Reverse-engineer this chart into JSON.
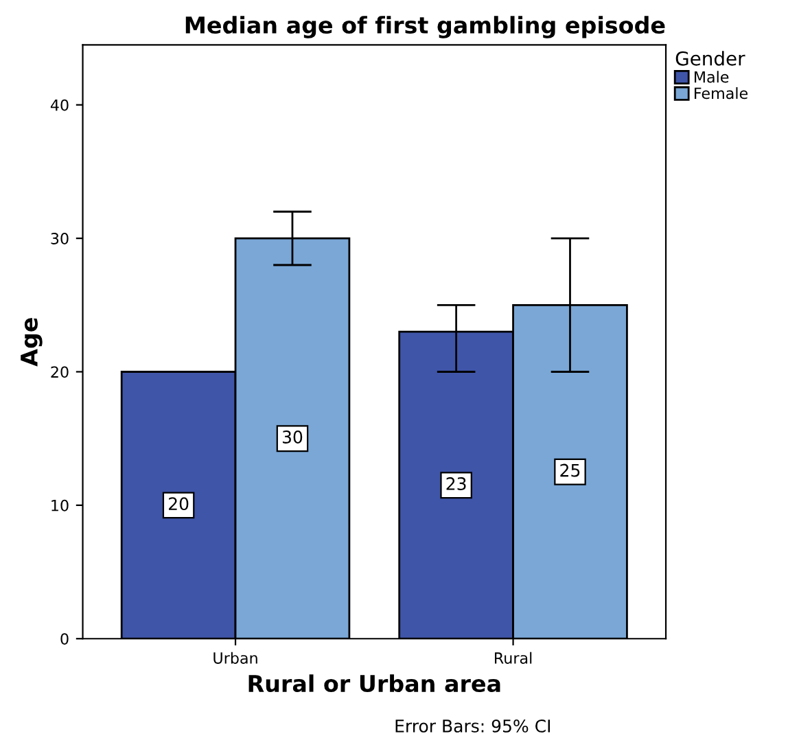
{
  "chart_data": {
    "type": "bar",
    "title": "Median age of first gambling episode",
    "xlabel": "Rural or Urban area",
    "ylabel": "Age",
    "legend_title": "Gender",
    "categories": [
      "Urban",
      "Rural"
    ],
    "series": [
      {
        "name": "Male",
        "color": "#3f55a8",
        "values": [
          20,
          23
        ],
        "errors": [
          null,
          [
            20,
            25
          ]
        ]
      },
      {
        "name": "Female",
        "color": "#7aa7d6",
        "values": [
          30,
          25
        ],
        "errors": [
          [
            28,
            32
          ],
          [
            20,
            30
          ]
        ]
      }
    ],
    "ylim": [
      0,
      44.5
    ],
    "yticks": [
      0,
      10,
      20,
      30,
      40
    ],
    "grid": false,
    "legend": "top right",
    "data_labels": true,
    "annotations": [
      "Error Bars: 95% CI"
    ]
  }
}
